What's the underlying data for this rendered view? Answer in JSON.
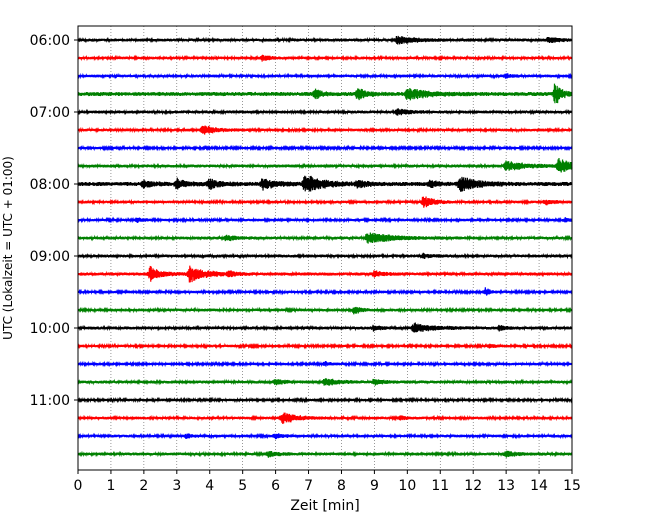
{
  "chart_data": {
    "type": "line",
    "subtype": "helicorder",
    "title": "",
    "xlabel": "Zeit  [min]",
    "ylabel": "UTC (Lokalzeit = UTC + 01:00)",
    "xlim": [
      0,
      15
    ],
    "x_ticks": [
      "0",
      "1",
      "2",
      "3",
      "4",
      "5",
      "6",
      "7",
      "8",
      "9",
      "10",
      "11",
      "12",
      "13",
      "14",
      "15"
    ],
    "y_ticks": [
      "06:00",
      "07:00",
      "08:00",
      "09:00",
      "10:00",
      "11:00"
    ],
    "minutes_per_trace": 15,
    "traces_per_hour": 4,
    "grid": "vertical dotted at each minute",
    "colors_cycle": [
      "#000000",
      "#ff0000",
      "#0000ff",
      "#008000"
    ],
    "traces": [
      {
        "start": "06:00",
        "color": "#000000",
        "noise": 1.5,
        "events": [
          {
            "t": 9.7,
            "amp": 4,
            "dur": 0.9
          },
          {
            "t": 14.3,
            "amp": 3,
            "dur": 0.5
          }
        ]
      },
      {
        "start": "06:15",
        "color": "#ff0000",
        "noise": 1.4,
        "events": [
          {
            "t": 5.6,
            "amp": 2.5,
            "dur": 0.4
          }
        ]
      },
      {
        "start": "06:30",
        "color": "#0000ff",
        "noise": 1.4,
        "events": [
          {
            "t": 13.0,
            "amp": 2,
            "dur": 0.3
          }
        ]
      },
      {
        "start": "06:45",
        "color": "#008000",
        "noise": 2.0,
        "events": [
          {
            "t": 7.2,
            "amp": 5,
            "dur": 0.3
          },
          {
            "t": 8.5,
            "amp": 6,
            "dur": 0.4
          },
          {
            "t": 10.0,
            "amp": 6,
            "dur": 0.9
          },
          {
            "t": 14.5,
            "amp": 11,
            "dur": 0.3
          }
        ]
      },
      {
        "start": "07:00",
        "color": "#000000",
        "noise": 1.5,
        "events": [
          {
            "t": 9.7,
            "amp": 3,
            "dur": 0.6
          }
        ]
      },
      {
        "start": "07:15",
        "color": "#ff0000",
        "noise": 1.4,
        "events": [
          {
            "t": 3.8,
            "amp": 5,
            "dur": 0.6
          }
        ]
      },
      {
        "start": "07:30",
        "color": "#0000ff",
        "noise": 1.2,
        "events": []
      },
      {
        "start": "07:45",
        "color": "#008000",
        "noise": 1.5,
        "events": [
          {
            "t": 13.0,
            "amp": 5,
            "dur": 1.0
          },
          {
            "t": 14.6,
            "amp": 7,
            "dur": 0.8
          }
        ]
      },
      {
        "start": "08:00",
        "color": "#000000",
        "noise": 2.0,
        "events": [
          {
            "t": 2.0,
            "amp": 4,
            "dur": 0.4
          },
          {
            "t": 3.0,
            "amp": 5,
            "dur": 0.5
          },
          {
            "t": 4.0,
            "amp": 5,
            "dur": 0.6
          },
          {
            "t": 5.6,
            "amp": 5,
            "dur": 0.7
          },
          {
            "t": 6.9,
            "amp": 9,
            "dur": 0.9
          },
          {
            "t": 8.5,
            "amp": 4,
            "dur": 0.4
          },
          {
            "t": 10.7,
            "amp": 4,
            "dur": 0.3
          },
          {
            "t": 11.6,
            "amp": 8,
            "dur": 0.8
          }
        ]
      },
      {
        "start": "08:15",
        "color": "#ff0000",
        "noise": 1.4,
        "events": [
          {
            "t": 10.5,
            "amp": 6,
            "dur": 0.5
          },
          {
            "t": 14.2,
            "amp": 2.5,
            "dur": 0.4
          }
        ]
      },
      {
        "start": "08:30",
        "color": "#0000ff",
        "noise": 1.3,
        "events": [
          {
            "t": 1.8,
            "amp": 2,
            "dur": 0.3
          },
          {
            "t": 14.8,
            "amp": 2,
            "dur": 0.3
          }
        ]
      },
      {
        "start": "08:45",
        "color": "#008000",
        "noise": 1.5,
        "events": [
          {
            "t": 4.5,
            "amp": 2.5,
            "dur": 0.6
          },
          {
            "t": 8.8,
            "amp": 6,
            "dur": 1.1
          }
        ]
      },
      {
        "start": "09:00",
        "color": "#000000",
        "noise": 1.5,
        "events": [
          {
            "t": 10.5,
            "amp": 2,
            "dur": 0.4
          }
        ]
      },
      {
        "start": "09:15",
        "color": "#ff0000",
        "noise": 1.6,
        "events": [
          {
            "t": 2.2,
            "amp": 7,
            "dur": 0.5
          },
          {
            "t": 3.4,
            "amp": 8,
            "dur": 0.8
          },
          {
            "t": 4.6,
            "amp": 3,
            "dur": 0.3
          },
          {
            "t": 9.0,
            "amp": 3,
            "dur": 0.4
          }
        ]
      },
      {
        "start": "09:30",
        "color": "#0000ff",
        "noise": 1.3,
        "events": [
          {
            "t": 12.4,
            "amp": 5,
            "dur": 0.15
          }
        ]
      },
      {
        "start": "09:45",
        "color": "#008000",
        "noise": 1.4,
        "events": [
          {
            "t": 8.4,
            "amp": 4,
            "dur": 0.3
          }
        ]
      },
      {
        "start": "10:00",
        "color": "#000000",
        "noise": 1.5,
        "events": [
          {
            "t": 9.0,
            "amp": 3,
            "dur": 0.3
          },
          {
            "t": 10.2,
            "amp": 4.5,
            "dur": 1.0
          },
          {
            "t": 12.8,
            "amp": 2.5,
            "dur": 0.3
          }
        ]
      },
      {
        "start": "10:15",
        "color": "#ff0000",
        "noise": 1.3,
        "events": [
          {
            "t": 12.5,
            "amp": 2,
            "dur": 0.3
          }
        ]
      },
      {
        "start": "10:30",
        "color": "#0000ff",
        "noise": 1.3,
        "events": [
          {
            "t": 7.5,
            "amp": 2,
            "dur": 0.3
          }
        ]
      },
      {
        "start": "10:45",
        "color": "#008000",
        "noise": 1.5,
        "events": [
          {
            "t": 6.0,
            "amp": 2.5,
            "dur": 0.5
          },
          {
            "t": 7.5,
            "amp": 3.5,
            "dur": 0.7
          },
          {
            "t": 9.0,
            "amp": 2.5,
            "dur": 0.5
          }
        ]
      },
      {
        "start": "11:00",
        "color": "#000000",
        "noise": 1.3,
        "events": []
      },
      {
        "start": "11:15",
        "color": "#ff0000",
        "noise": 1.4,
        "events": [
          {
            "t": 6.2,
            "amp": 6,
            "dur": 0.7
          },
          {
            "t": 9.8,
            "amp": 2,
            "dur": 0.3
          }
        ]
      },
      {
        "start": "11:30",
        "color": "#0000ff",
        "noise": 1.4,
        "events": [
          {
            "t": 3.3,
            "amp": 2.5,
            "dur": 0.3
          },
          {
            "t": 6.0,
            "amp": 2.5,
            "dur": 0.4
          }
        ]
      },
      {
        "start": "11:45",
        "color": "#008000",
        "noise": 1.5,
        "events": [
          {
            "t": 5.8,
            "amp": 2.5,
            "dur": 0.5
          },
          {
            "t": 13.0,
            "amp": 3,
            "dur": 0.5
          }
        ]
      }
    ]
  }
}
